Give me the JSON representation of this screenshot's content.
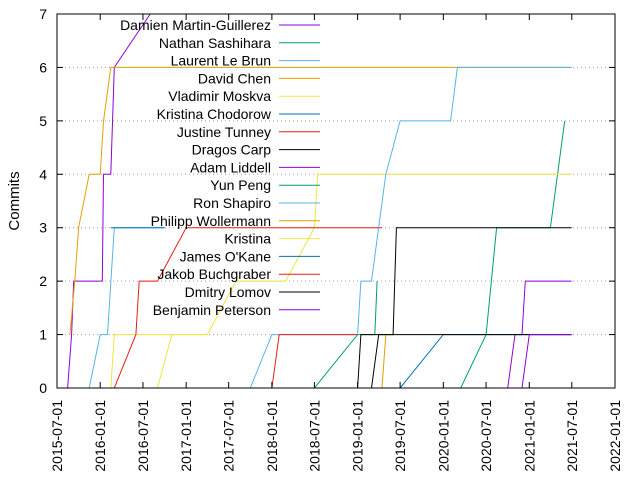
{
  "chart_data": {
    "type": "line",
    "title": "",
    "xlabel": "",
    "ylabel": "Commits",
    "xlim": [
      "2015-07-01",
      "2022-01-01"
    ],
    "ylim": [
      0,
      7
    ],
    "x_ticks": [
      "2015-07-01",
      "2016-01-01",
      "2016-07-01",
      "2017-01-01",
      "2017-07-01",
      "2018-01-01",
      "2018-07-01",
      "2019-01-01",
      "2019-07-01",
      "2020-01-01",
      "2020-07-01",
      "2021-01-01",
      "2021-07-01",
      "2022-01-01"
    ],
    "y_ticks": [
      0,
      1,
      2,
      3,
      4,
      5,
      6,
      7
    ],
    "grid": "horizontal dotted",
    "legend_position": "top-left",
    "series": [
      {
        "name": "Damien Martin-Guillerez",
        "color": "#9400d3",
        "points": [
          [
            "2015-08-15",
            0
          ],
          [
            "2015-09-01",
            1
          ],
          [
            "2015-09-10",
            2
          ],
          [
            "2016-01-10",
            2
          ],
          [
            "2016-01-15",
            4
          ],
          [
            "2016-02-15",
            4
          ],
          [
            "2016-03-01",
            6
          ],
          [
            "2016-08-01",
            7
          ]
        ]
      },
      {
        "name": "Nathan Sashihara",
        "color": "#009e73",
        "points": [
          [
            "2020-03-15",
            0
          ],
          [
            "2020-07-01",
            1
          ],
          [
            "2020-08-15",
            3
          ],
          [
            "2021-04-01",
            3
          ],
          [
            "2021-06-01",
            5
          ]
        ]
      },
      {
        "name": "Laurent Le Brun",
        "color": "#56b4e9",
        "points": [
          [
            "2015-11-15",
            0
          ],
          [
            "2016-01-01",
            1
          ],
          [
            "2016-02-01",
            1
          ],
          [
            "2016-03-01",
            3
          ],
          [
            "2016-10-01",
            3
          ]
        ]
      },
      {
        "name": "David Chen",
        "color": "#e69f00",
        "points": [
          [
            "2015-08-25",
            1
          ],
          [
            "2015-09-15",
            2
          ],
          [
            "2015-10-01",
            3
          ],
          [
            "2015-11-15",
            4
          ],
          [
            "2016-01-01",
            4
          ],
          [
            "2016-01-15",
            5
          ],
          [
            "2016-02-15",
            6
          ],
          [
            "2021-06-30",
            6
          ]
        ]
      },
      {
        "name": "Vladimir Moskva",
        "color": "#f0e442",
        "points": [
          [
            "2016-02-15",
            0
          ],
          [
            "2016-03-01",
            1
          ],
          [
            "2017-04-01",
            1
          ],
          [
            "2017-08-01",
            2
          ],
          [
            "2018-03-01",
            2
          ],
          [
            "2018-07-01",
            3
          ],
          [
            "2018-07-15",
            4
          ],
          [
            "2021-06-30",
            4
          ]
        ]
      },
      {
        "name": "Kristina Chodorow",
        "color": "#0072b2",
        "points": [
          [
            "2016-02-15",
            3
          ],
          [
            "2016-10-01",
            3
          ]
        ]
      },
      {
        "name": "Justine Tunney",
        "color": "#e51e10",
        "points": [
          [
            "2016-03-01",
            0
          ],
          [
            "2016-06-01",
            1
          ],
          [
            "2016-06-15",
            2
          ],
          [
            "2016-09-01",
            2
          ],
          [
            "2017-01-01",
            3
          ],
          [
            "2019-04-15",
            3
          ]
        ]
      },
      {
        "name": "Dragos Carp",
        "color": "#000000",
        "points": [
          [
            "2019-03-01",
            0
          ],
          [
            "2019-04-01",
            1
          ],
          [
            "2019-06-01",
            1
          ],
          [
            "2019-06-15",
            3
          ],
          [
            "2021-06-30",
            3
          ]
        ]
      },
      {
        "name": "Adam Liddell",
        "color": "#9400d3",
        "points": [
          [
            "2020-10-01",
            0
          ],
          [
            "2020-11-01",
            1
          ],
          [
            "2020-12-01",
            1
          ],
          [
            "2020-12-15",
            2
          ],
          [
            "2021-06-30",
            2
          ]
        ]
      },
      {
        "name": "Yun Peng",
        "color": "#009e73",
        "points": [
          [
            "2018-07-01",
            0
          ],
          [
            "2019-01-01",
            1
          ],
          [
            "2019-03-15",
            1
          ],
          [
            "2019-03-25",
            2
          ]
        ]
      },
      {
        "name": "Ron Shapiro",
        "color": "#56b4e9",
        "points": [
          [
            "2017-10-01",
            0
          ],
          [
            "2018-01-01",
            1
          ],
          [
            "2019-01-01",
            1
          ],
          [
            "2019-01-15",
            2
          ],
          [
            "2019-03-01",
            2
          ],
          [
            "2019-05-01",
            4
          ],
          [
            "2019-07-01",
            5
          ],
          [
            "2020-02-01",
            5
          ],
          [
            "2020-03-01",
            6
          ],
          [
            "2021-06-30",
            6
          ]
        ]
      },
      {
        "name": "Philipp Wollermann",
        "color": "#e69f00",
        "points": [
          [
            "2019-04-15",
            0
          ],
          [
            "2019-05-01",
            1
          ],
          [
            "2019-06-01",
            1
          ]
        ]
      },
      {
        "name": "Kristina",
        "color": "#f0e442",
        "points": [
          [
            "2016-09-01",
            0
          ],
          [
            "2016-11-01",
            1
          ],
          [
            "2017-04-01",
            1
          ]
        ]
      },
      {
        "name": "James O'Kane",
        "color": "#0072b2",
        "points": [
          [
            "2019-07-01",
            0
          ],
          [
            "2020-01-01",
            1
          ],
          [
            "2021-06-30",
            1
          ]
        ]
      },
      {
        "name": "Jakob Buchgraber",
        "color": "#e51e10",
        "points": [
          [
            "2018-01-01",
            0
          ],
          [
            "2018-02-01",
            1
          ],
          [
            "2019-01-01",
            1
          ]
        ]
      },
      {
        "name": "Dmitry Lomov",
        "color": "#000000",
        "points": [
          [
            "2019-01-01",
            0
          ],
          [
            "2019-01-15",
            1
          ],
          [
            "2021-06-30",
            1
          ]
        ]
      },
      {
        "name": "Benjamin Peterson",
        "color": "#9400d3",
        "points": [
          [
            "2020-12-01",
            0
          ],
          [
            "2021-01-01",
            1
          ],
          [
            "2021-06-30",
            1
          ]
        ]
      }
    ]
  }
}
